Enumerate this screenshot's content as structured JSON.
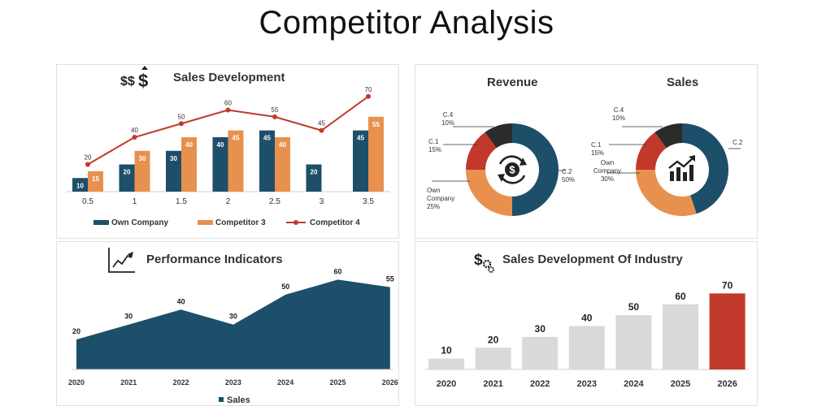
{
  "page": {
    "title": "Competitor Analysis"
  },
  "colors": {
    "navy": "#1d4f6a",
    "orange": "#e8914e",
    "red": "#c0392b",
    "gray": "#d9d9d9",
    "dark": "#2b2b2b"
  },
  "icons": {
    "sales_development": "dollar-signs-icon",
    "revenue": "dollar-cycle-icon",
    "sales": "growth-chart-icon",
    "performance": "line-chart-icon",
    "industry": "dollar-gears-icon"
  },
  "chart_data": [
    {
      "type": "bar",
      "title": "Sales Development",
      "categories": [
        "0.5",
        "1",
        "1.5",
        "2",
        "2.5",
        "3",
        "3.5"
      ],
      "series": [
        {
          "name": "Own Company",
          "type": "bar",
          "values": [
            10,
            20,
            30,
            40,
            45,
            20,
            45
          ]
        },
        {
          "name": "Competitor 3",
          "type": "bar",
          "values": [
            15,
            30,
            40,
            45,
            40,
            null,
            55
          ]
        },
        {
          "name": "Competitor 4",
          "type": "line",
          "values": [
            20,
            40,
            50,
            60,
            55,
            45,
            70
          ]
        }
      ],
      "ylim": [
        0,
        80
      ],
      "legend_position": "bottom",
      "grid": false
    },
    {
      "type": "pie",
      "title": "Revenue",
      "donut": true,
      "slices": [
        {
          "label": "C.2",
          "value": 50,
          "display": "50%"
        },
        {
          "label": "Own Company",
          "value": 25,
          "display": "25%"
        },
        {
          "label": "C.1",
          "value": 15,
          "display": "15%"
        },
        {
          "label": "C.4",
          "value": 10,
          "display": "10%"
        }
      ]
    },
    {
      "type": "pie",
      "title": "Sales",
      "donut": true,
      "slices": [
        {
          "label": "C.2",
          "value": 45,
          "display": ""
        },
        {
          "label": "Own Company",
          "value": 30,
          "display": "30%"
        },
        {
          "label": "C.1",
          "value": 15,
          "display": "15%"
        },
        {
          "label": "C.4",
          "value": 10,
          "display": "10%"
        }
      ]
    },
    {
      "type": "area",
      "title": "Performance Indicators",
      "x": [
        "2020",
        "2021",
        "2022",
        "2023",
        "2024",
        "2025",
        "2026"
      ],
      "series": [
        {
          "name": "Sales",
          "values": [
            20,
            30,
            40,
            30,
            50,
            60,
            55
          ]
        }
      ],
      "ylim": [
        0,
        70
      ],
      "legend_position": "bottom",
      "grid": false
    },
    {
      "type": "bar",
      "title": "Sales Development Of Industry",
      "categories": [
        "2020",
        "2021",
        "2022",
        "2023",
        "2024",
        "2025",
        "2026"
      ],
      "values": [
        10,
        20,
        30,
        40,
        50,
        60,
        70
      ],
      "highlight_index": 6,
      "ylim": [
        0,
        80
      ],
      "grid": false
    }
  ]
}
